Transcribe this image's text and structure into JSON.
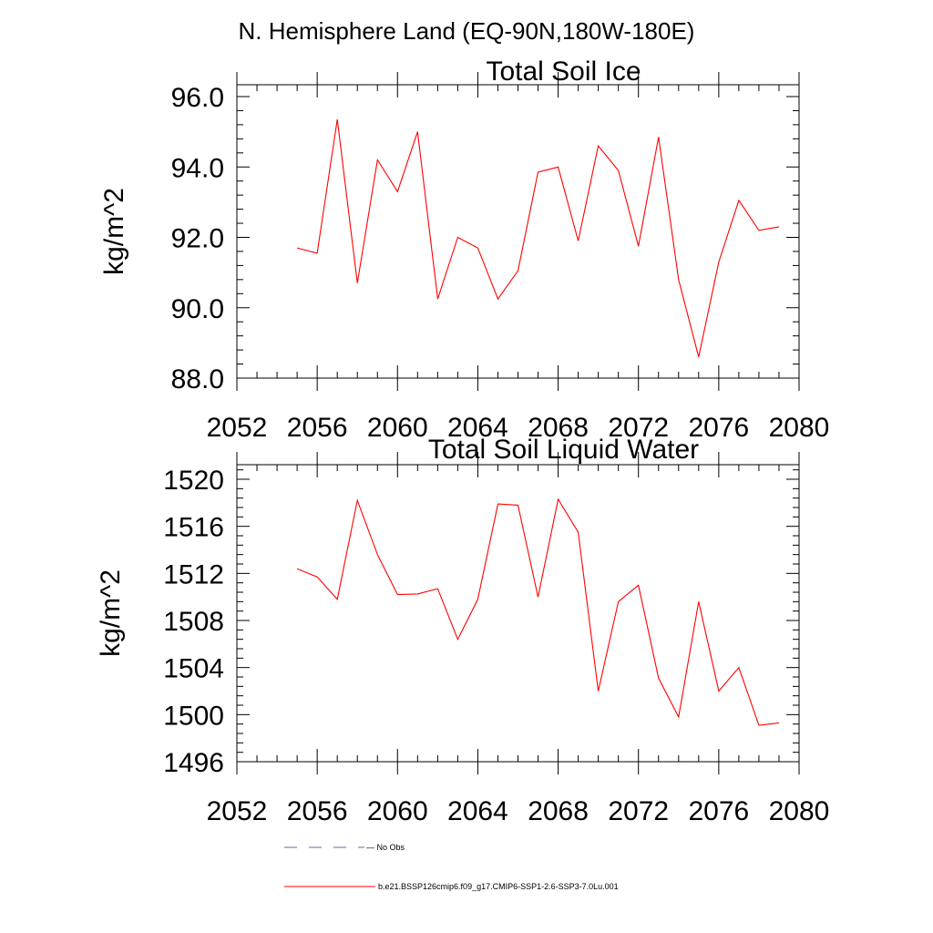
{
  "figure": {
    "main_title": "N. Hemisphere Land (EQ-90N,180W-180E)"
  },
  "legend": {
    "items": [
      {
        "label": "No Obs",
        "color": "#5a6ea8",
        "style": "dashed"
      },
      {
        "label": "b.e21.BSSP126cmip6.f09_g17.CMIP6-SSP1-2.6-SSP3-7.0Lu.001",
        "color": "#ff0000",
        "style": "solid"
      }
    ]
  },
  "chart_data": [
    {
      "type": "line",
      "title": "Total Soil Ice",
      "xlabel": "",
      "ylabel": "kg/m^2",
      "xlim": [
        2052,
        2080
      ],
      "ylim": [
        88.0,
        96.0
      ],
      "xticks": [
        "2052",
        "2056",
        "2060",
        "2064",
        "2068",
        "2072",
        "2076",
        "2080"
      ],
      "yticks": [
        "88.0",
        "90.0",
        "92.0",
        "94.0",
        "96.0"
      ],
      "grid": false,
      "series": [
        {
          "color": "#ff0000",
          "x": [
            2055,
            2056,
            2057,
            2058,
            2059,
            2060,
            2061,
            2062,
            2063,
            2064,
            2065,
            2066,
            2067,
            2068,
            2069,
            2070,
            2071,
            2072,
            2073,
            2074,
            2075,
            2076,
            2077,
            2078,
            2079
          ],
          "values": [
            91.7,
            91.55,
            95.35,
            90.7,
            94.2,
            93.3,
            95.0,
            90.25,
            92.0,
            91.7,
            90.25,
            91.05,
            93.85,
            94.0,
            91.9,
            94.6,
            93.9,
            91.75,
            94.85,
            90.8,
            88.6,
            91.3,
            93.05,
            92.2,
            92.3
          ]
        }
      ]
    },
    {
      "type": "line",
      "title": "Total Soil Liquid Water",
      "xlabel": "",
      "ylabel": "kg/m^2",
      "xlim": [
        2052,
        2080
      ],
      "ylim": [
        1496,
        1521
      ],
      "xticks": [
        "2052",
        "2056",
        "2060",
        "2064",
        "2068",
        "2072",
        "2076",
        "2080"
      ],
      "yticks": [
        "1496",
        "1500",
        "1504",
        "1508",
        "1512",
        "1516",
        "1520"
      ],
      "grid": false,
      "series": [
        {
          "color": "#ff0000",
          "x": [
            2055,
            2056,
            2057,
            2058,
            2059,
            2060,
            2061,
            2062,
            2063,
            2064,
            2065,
            2066,
            2067,
            2068,
            2069,
            2070,
            2071,
            2072,
            2073,
            2074,
            2075,
            2076,
            2077,
            2078,
            2079
          ],
          "values": [
            1512.4,
            1511.7,
            1509.8,
            1518.2,
            1513.6,
            1510.2,
            1510.25,
            1510.7,
            1506.4,
            1509.8,
            1517.9,
            1517.8,
            1510.0,
            1518.3,
            1515.5,
            1502.0,
            1509.6,
            1511.0,
            1503.1,
            1499.8,
            1509.6,
            1502.0,
            1504.0,
            1499.1,
            1499.3
          ]
        }
      ]
    }
  ]
}
